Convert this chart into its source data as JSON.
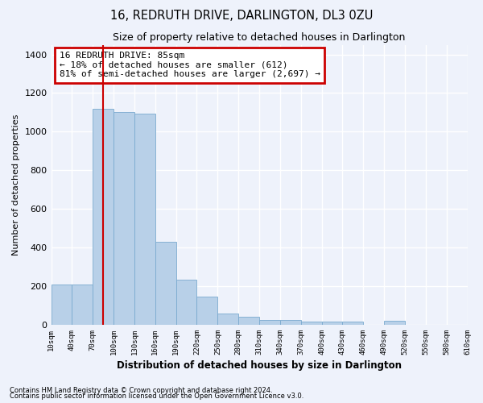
{
  "title": "16, REDRUTH DRIVE, DARLINGTON, DL3 0ZU",
  "subtitle": "Size of property relative to detached houses in Darlington",
  "xlabel": "Distribution of detached houses by size in Darlington",
  "ylabel": "Number of detached properties",
  "footnote1": "Contains HM Land Registry data © Crown copyright and database right 2024.",
  "footnote2": "Contains public sector information licensed under the Open Government Licence v3.0.",
  "annotation_line1": "16 REDRUTH DRIVE: 85sqm",
  "annotation_line2": "← 18% of detached houses are smaller (612)",
  "annotation_line3": "81% of semi-detached houses are larger (2,697) →",
  "bar_color": "#b8d0e8",
  "bar_edge_color": "#7aaacf",
  "vline_color": "#cc0000",
  "vline_x": 85,
  "annotation_box_color": "#cc0000",
  "background_color": "#eef2fb",
  "grid_color": "#ffffff",
  "bar_starts": [
    10,
    40,
    70,
    100,
    130,
    160,
    190,
    220,
    250,
    280,
    310,
    340,
    370,
    400,
    430,
    460,
    490,
    520,
    550,
    580
  ],
  "heights": [
    210,
    210,
    1120,
    1100,
    1095,
    430,
    235,
    145,
    60,
    40,
    25,
    25,
    15,
    15,
    15,
    0,
    20,
    0,
    0,
    0
  ],
  "ylim": [
    0,
    1450
  ],
  "yticks": [
    0,
    200,
    400,
    600,
    800,
    1000,
    1200,
    1400
  ],
  "tick_positions": [
    10,
    40,
    70,
    100,
    130,
    160,
    190,
    220,
    250,
    280,
    310,
    340,
    370,
    400,
    430,
    460,
    490,
    520,
    550,
    580,
    610
  ],
  "tick_labels": [
    "10sqm",
    "40sqm",
    "70sqm",
    "100sqm",
    "130sqm",
    "160sqm",
    "190sqm",
    "220sqm",
    "250sqm",
    "280sqm",
    "310sqm",
    "340sqm",
    "370sqm",
    "400sqm",
    "430sqm",
    "460sqm",
    "490sqm",
    "520sqm",
    "550sqm",
    "580sqm",
    "610sqm"
  ]
}
